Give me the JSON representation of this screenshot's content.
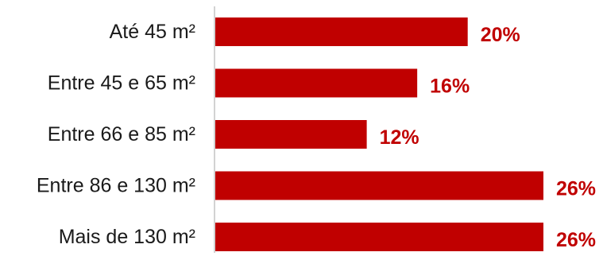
{
  "chart_data": {
    "type": "bar",
    "orientation": "horizontal",
    "categories": [
      "Até 45 m²",
      "Entre 45 e 65 m²",
      "Entre 66 e 85 m²",
      "Entre 86 e 130 m²",
      "Mais de 130 m²"
    ],
    "values": [
      20,
      16,
      12,
      26,
      26
    ],
    "value_labels": [
      "20%",
      "16%",
      "12%",
      "26%",
      "26%"
    ],
    "unit": "%",
    "xlim": [
      0,
      26
    ],
    "grid": false,
    "bar_color": "#c00000",
    "label_color": "#c00000"
  }
}
